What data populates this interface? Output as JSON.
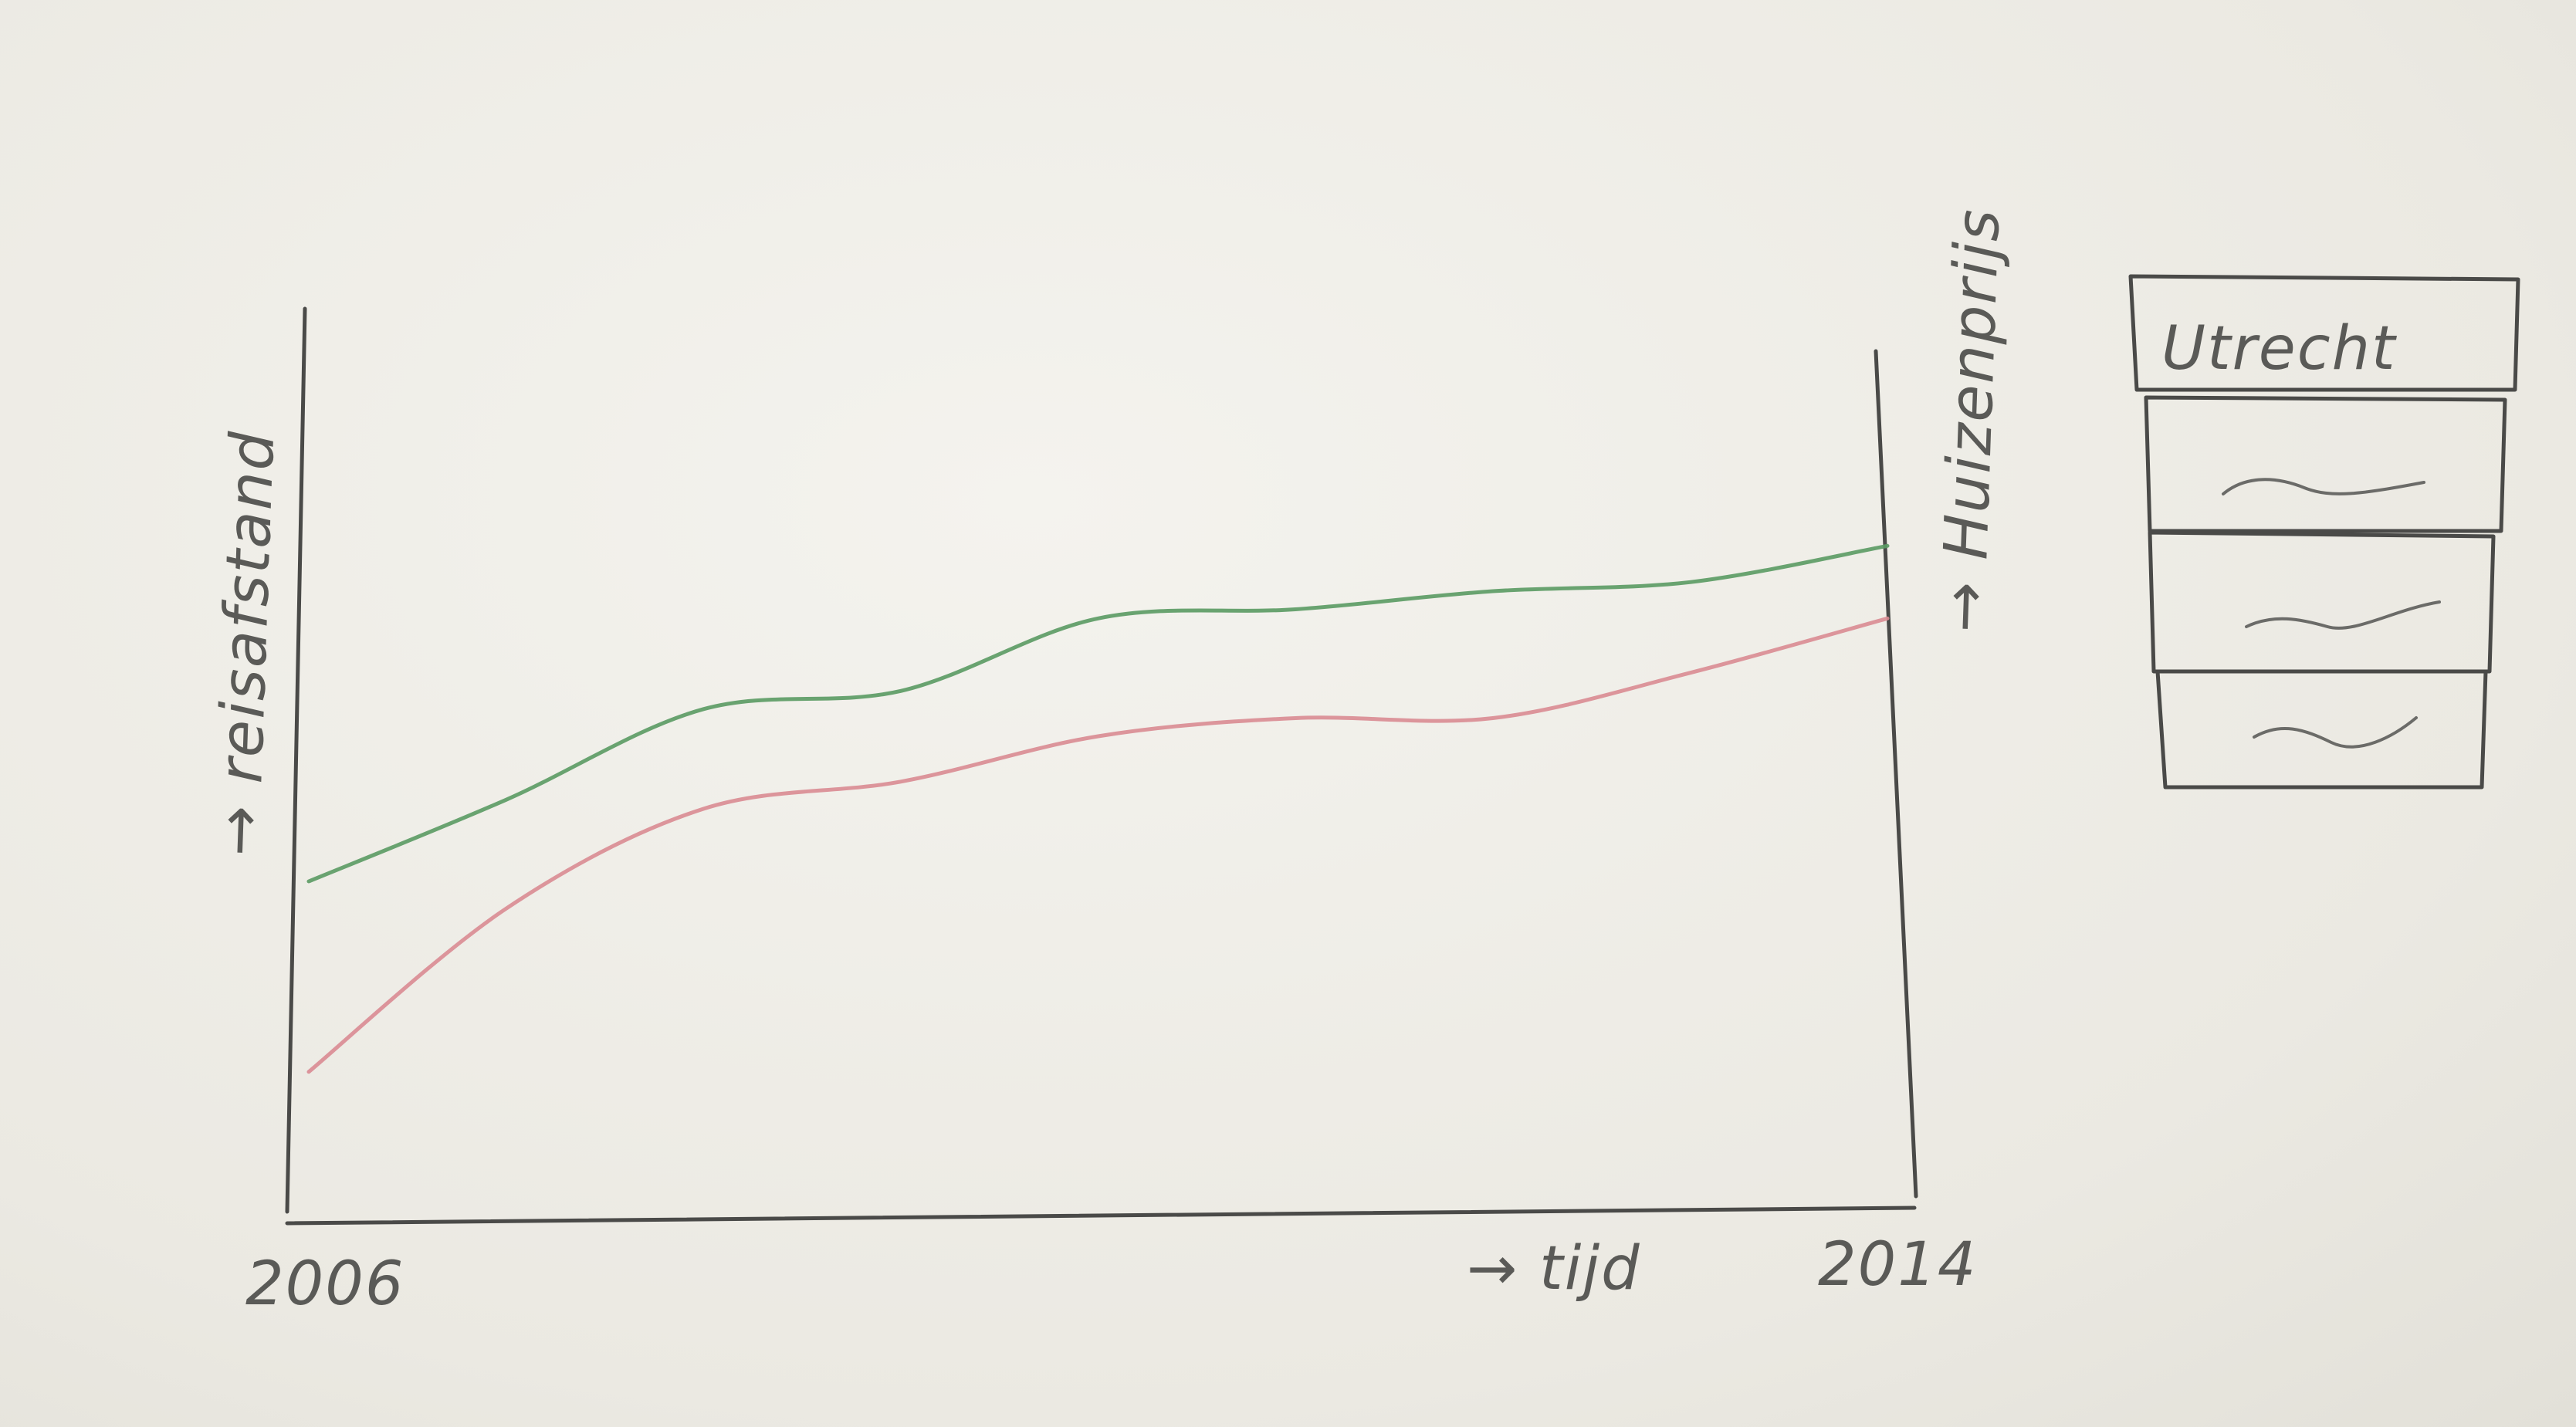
{
  "chart_data": {
    "type": "line",
    "x_start_label": "2006",
    "x_end_label": "2014",
    "xlabel": "→ tijd",
    "ylabel_left": "→ reisafstand",
    "ylabel_right": "→ Huizenprijs",
    "xlim": [
      2006,
      2014
    ],
    "ylim": [
      0,
      100
    ],
    "legend_title": "Utrecht",
    "legend_placement": "right",
    "grid": false,
    "series": [
      {
        "color": "#5a9a63",
        "x": [
          2006,
          2007,
          2008,
          2009,
          2010,
          2011,
          2012,
          2013,
          2014
        ],
        "values": [
          36,
          45,
          55,
          57,
          65,
          66,
          68,
          69,
          73
        ]
      },
      {
        "color": "#d98b92",
        "x": [
          2006,
          2007,
          2008,
          2009,
          2010,
          2011,
          2012,
          2013,
          2014
        ],
        "values": [
          15,
          33,
          44,
          47,
          52,
          54,
          54,
          59,
          65
        ]
      }
    ]
  }
}
